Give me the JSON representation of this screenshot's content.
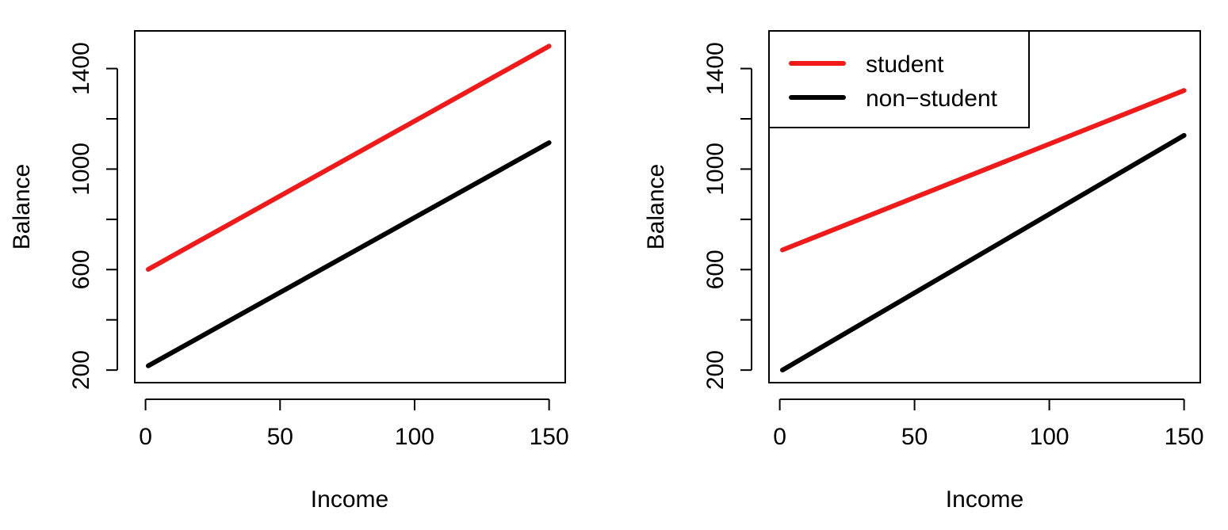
{
  "chart_data": [
    {
      "type": "line",
      "xlabel": "Income",
      "ylabel": "Balance",
      "xlim": [
        -4,
        156
      ],
      "ylim": [
        150,
        1550
      ],
      "x_ticks": [
        "0",
        "50",
        "100",
        "150"
      ],
      "y_ticks": [
        "200",
        "",
        "600",
        "",
        "1000",
        "",
        "1400"
      ],
      "grid": false,
      "colors": {
        "student": "#f01a1a",
        "non_student": "#000000"
      },
      "series": [
        {
          "key": "student",
          "x": [
            1,
            150
          ],
          "y": [
            601,
            1489
          ]
        },
        {
          "key": "non_student",
          "x": [
            1,
            150
          ],
          "y": [
            217,
            1105
          ]
        }
      ]
    },
    {
      "type": "line",
      "xlabel": "Income",
      "ylabel": "Balance",
      "xlim": [
        -4,
        156
      ],
      "ylim": [
        150,
        1550
      ],
      "x_ticks": [
        "0",
        "50",
        "100",
        "150"
      ],
      "y_ticks": [
        "200",
        "",
        "600",
        "",
        "1000",
        "",
        "1400"
      ],
      "grid": false,
      "legend": {
        "placement": "top-left",
        "entries": [
          "student",
          "non−student"
        ]
      },
      "colors": {
        "student": "#f01a1a",
        "non_student": "#000000"
      },
      "series": [
        {
          "name": "student",
          "key": "student",
          "x": [
            1,
            150
          ],
          "y": [
            678,
            1313
          ]
        },
        {
          "name": "non−student",
          "key": "non_student",
          "x": [
            1,
            150
          ],
          "y": [
            200,
            1134
          ]
        }
      ]
    }
  ]
}
